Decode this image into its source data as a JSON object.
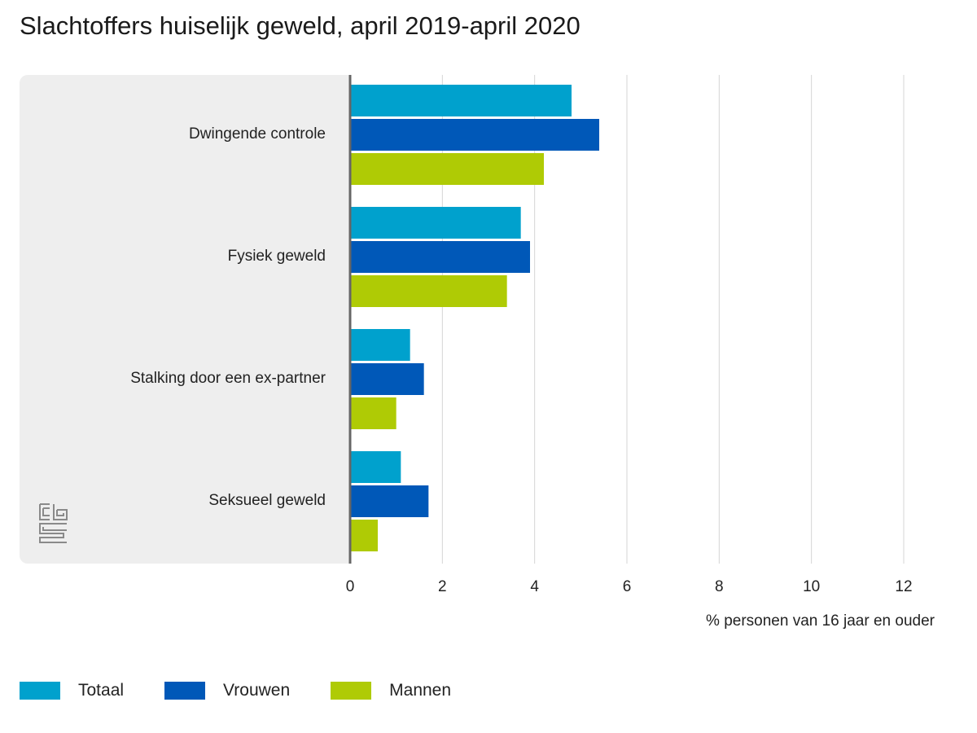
{
  "chart_data": {
    "type": "bar",
    "orientation": "horizontal",
    "title": "Slachtoffers huiselijk geweld, april 2019-april 2020",
    "xlabel": "% personen van 16 jaar en ouder",
    "ylabel": "",
    "categories": [
      "Dwingende controle",
      "Fysiek geweld",
      "Stalking door een ex-partner",
      "Seksueel geweld"
    ],
    "series": [
      {
        "name": "Totaal",
        "color": "#00a1cd",
        "values": [
          4.8,
          3.7,
          1.3,
          1.1
        ]
      },
      {
        "name": "Vrouwen",
        "color": "#0058b8",
        "values": [
          5.4,
          3.9,
          1.6,
          1.7
        ]
      },
      {
        "name": "Mannen",
        "color": "#afcb05",
        "values": [
          4.2,
          3.4,
          1.0,
          0.6
        ]
      }
    ],
    "xlim": [
      0,
      12
    ],
    "xticks": [
      "0",
      "2",
      "4",
      "6",
      "8",
      "10",
      "12"
    ],
    "grid": true,
    "legend_position": "bottom-left"
  },
  "logo": {
    "name": "cbs-logo-icon",
    "text": "cbs"
  }
}
